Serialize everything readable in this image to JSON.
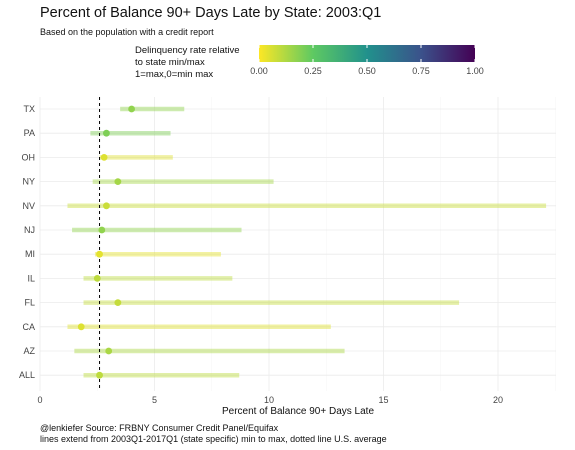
{
  "chart_data": {
    "type": "dot-range",
    "title": "Percent of Balance 90+ Days Late by State: 2003:Q1",
    "subtitle": "Based on the population with a credit report",
    "xlabel": "Percent of Balance 90+ Days Late",
    "ylabel": "",
    "xlim": [
      0,
      23
    ],
    "x_ticks": [
      0,
      5,
      10,
      15,
      20
    ],
    "reference_line": {
      "value": 2.6,
      "style": "dashed"
    },
    "color_legend": {
      "title_lines": [
        "Delinquency rate relative",
        "to state min/max",
        "1=max,0=min max"
      ],
      "ticks": [
        0.0,
        0.25,
        0.5,
        0.75,
        1.0
      ],
      "tick_labels": [
        "0.00",
        "0.25",
        "0.50",
        "0.75",
        "1.00"
      ],
      "colormap": "viridis-reversed",
      "stops": [
        "#fde725",
        "#5ec962",
        "#21918c",
        "#3b528b",
        "#440154"
      ]
    },
    "categories": [
      "TX",
      "PA",
      "OH",
      "NY",
      "NV",
      "NJ",
      "MI",
      "IL",
      "FL",
      "CA",
      "AZ",
      "ALL"
    ],
    "series": [
      {
        "range_min": [
          3.5,
          2.2,
          2.6,
          2.3,
          1.2,
          1.4,
          2.4,
          1.9,
          1.9,
          1.2,
          1.5,
          1.9
        ],
        "range_max": [
          6.3,
          5.7,
          5.8,
          10.2,
          22.1,
          8.8,
          7.9,
          8.4,
          18.3,
          12.7,
          13.3,
          8.7
        ],
        "value": [
          4.0,
          2.9,
          2.8,
          3.4,
          2.9,
          2.7,
          2.6,
          2.5,
          3.4,
          1.8,
          3.0,
          2.6
        ],
        "relative": [
          0.17,
          0.2,
          0.05,
          0.14,
          0.08,
          0.17,
          0.04,
          0.1,
          0.09,
          0.05,
          0.13,
          0.1
        ]
      }
    ]
  },
  "caption": {
    "line1": "@lenkiefer Source: FRBNY Consumer Credit Panel/Equifax",
    "line2": "lines extend from 2003Q1-2017Q1 (state specific) min to max, dotted line U.S. average"
  }
}
